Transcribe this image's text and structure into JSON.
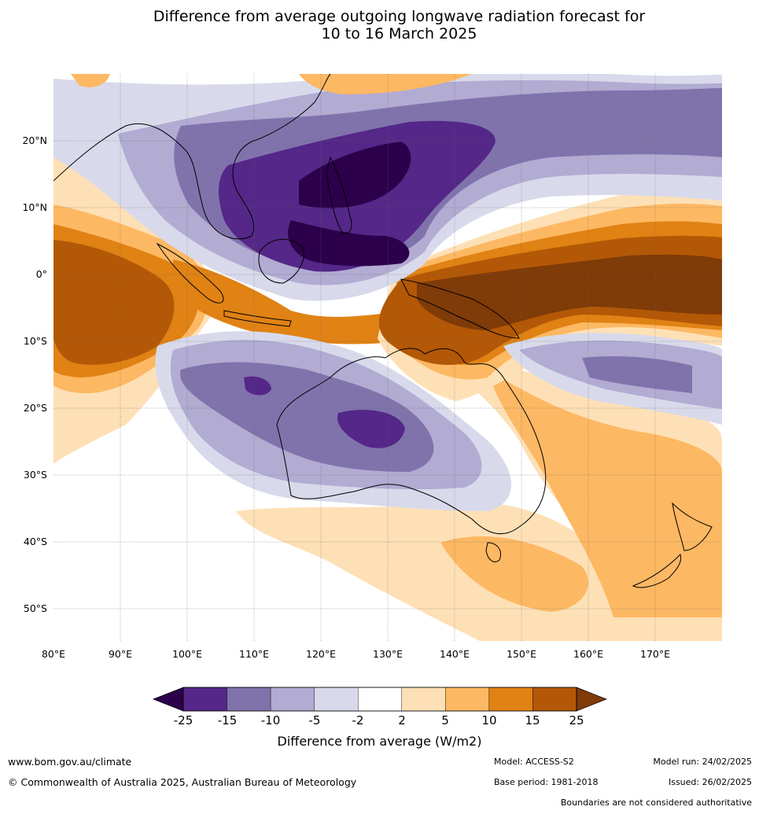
{
  "title_line1": "Difference from average outgoing longwave radiation forecast for",
  "title_line2": "10 to 16 March 2025",
  "map": {
    "lon_range": [
      80,
      180
    ],
    "lat_range": [
      -55,
      30
    ],
    "lat_labels": [
      "20°N",
      "10°N",
      "0°",
      "10°S",
      "20°S",
      "30°S",
      "40°S",
      "50°S"
    ],
    "lon_labels": [
      "80°E",
      "90°E",
      "100°E",
      "110°E",
      "120°E",
      "130°E",
      "140°E",
      "150°E",
      "160°E",
      "170°E"
    ],
    "grid": true
  },
  "colorbar": {
    "title": "Difference from average (W/m2)",
    "ticks": [
      "-25",
      "-15",
      "-10",
      "-5",
      "-2",
      "2",
      "5",
      "10",
      "15",
      "25"
    ],
    "colors": [
      "#2d004b",
      "#542788",
      "#8073ac",
      "#b2abd2",
      "#d8daeb",
      "#ffffff",
      "#fee0b6",
      "#fdb863",
      "#e08214",
      "#b35806",
      "#7f3b08"
    ]
  },
  "footer": {
    "url": "www.bom.gov.au/climate",
    "copyright": "© Commonwealth of Australia 2025, Australian Bureau of Meteorology",
    "model": "Model: ACCESS-S2",
    "base_period": "Base period: 1981-2018",
    "model_run": "Model run: 24/02/2025",
    "issued": "Issued: 26/02/2025",
    "boundaries": "Boundaries are not considered authoritative"
  }
}
